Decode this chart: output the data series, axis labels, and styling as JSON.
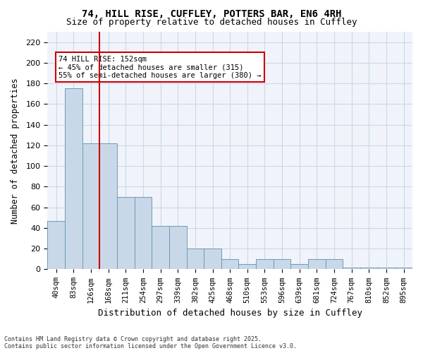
{
  "title_line1": "74, HILL RISE, CUFFLEY, POTTERS BAR, EN6 4RH",
  "title_line2": "Size of property relative to detached houses in Cuffley",
  "xlabel": "Distribution of detached houses by size in Cuffley",
  "ylabel": "Number of detached properties",
  "categories": [
    "40sqm",
    "83sqm",
    "126sqm",
    "168sqm",
    "211sqm",
    "254sqm",
    "297sqm",
    "339sqm",
    "382sqm",
    "425sqm",
    "468sqm",
    "510sqm",
    "553sqm",
    "596sqm",
    "639sqm",
    "681sqm",
    "724sqm",
    "767sqm",
    "810sqm",
    "852sqm",
    "895sqm"
  ],
  "values": [
    47,
    175,
    122,
    122,
    70,
    70,
    42,
    42,
    20,
    20,
    10,
    5,
    10,
    10,
    5,
    10,
    10,
    2,
    2,
    2,
    2
  ],
  "bar_color": "#c8d8e8",
  "bar_edge_color": "#7099b8",
  "grid_color": "#c8d8e8",
  "background_color": "#f0f4fa",
  "vline_x_index": 2.5,
  "vline_color": "#cc0000",
  "annotation_text": "74 HILL RISE: 152sqm\n← 45% of detached houses are smaller (315)\n55% of semi-detached houses are larger (380) →",
  "annotation_box_color": "#cc0000",
  "ylim": [
    0,
    230
  ],
  "yticks": [
    0,
    20,
    40,
    60,
    80,
    100,
    120,
    140,
    160,
    180,
    200,
    220
  ],
  "footer_line1": "Contains HM Land Registry data © Crown copyright and database right 2025.",
  "footer_line2": "Contains public sector information licensed under the Open Government Licence v3.0."
}
